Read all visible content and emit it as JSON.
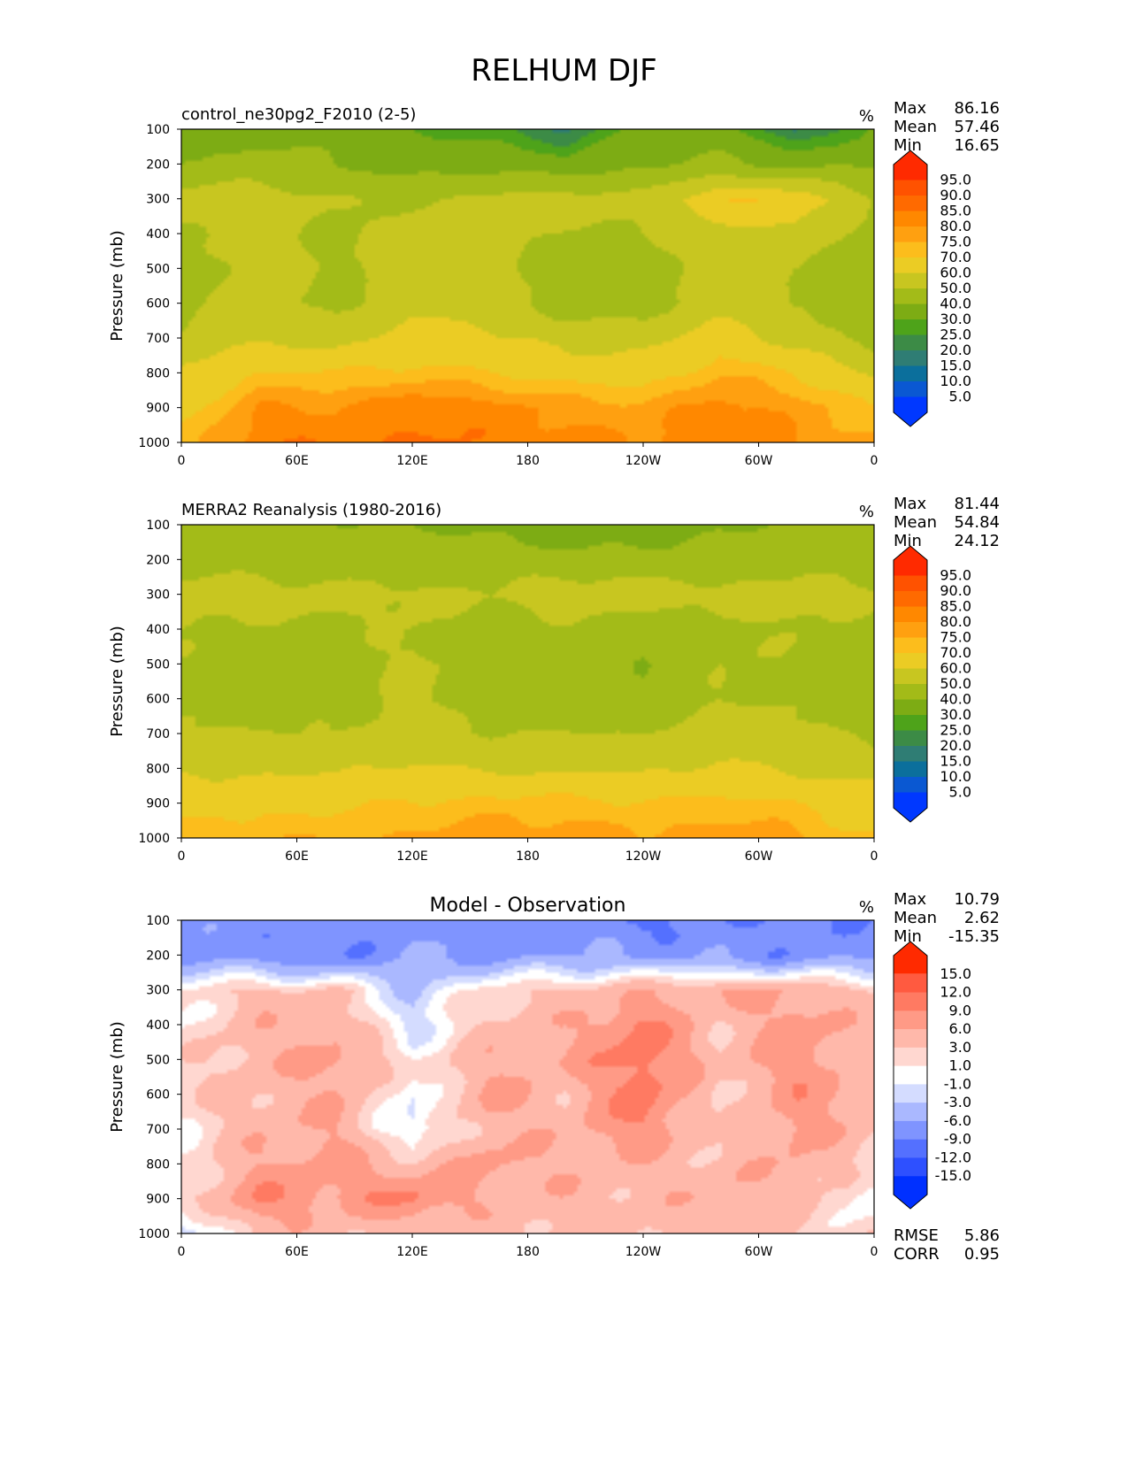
{
  "page": {
    "title": "RELHUM DJF"
  },
  "panel_labels": {
    "ylabel": "Pressure (mb)",
    "units": "%",
    "stat_max": "Max",
    "stat_mean": "Mean",
    "stat_min": "Min",
    "stat_rmse": "RMSE",
    "stat_corr": "CORR"
  },
  "chart_data": [
    {
      "type": "heatmap",
      "title": "control_ne30pg2_F2010 (2-5)",
      "units": "%",
      "ylabel": "Pressure (mb)",
      "x_ticks": [
        "0",
        "60E",
        "120E",
        "180",
        "120W",
        "60W",
        "0"
      ],
      "y_ticks": [
        "100",
        "200",
        "300",
        "400",
        "500",
        "600",
        "700",
        "800",
        "900",
        "1000"
      ],
      "xlim": [
        0,
        360
      ],
      "ylim": [
        1000,
        100
      ],
      "stats": {
        "max": "86.16",
        "mean": "57.46",
        "min": "16.65"
      },
      "colorbar": {
        "labels": [
          "95.0",
          "90.0",
          "85.0",
          "80.0",
          "75.0",
          "70.0",
          "60.0",
          "50.0",
          "40.0",
          "30.0",
          "25.0",
          "20.0",
          "15.0",
          "10.0",
          "5.0"
        ],
        "colors": [
          "#ff2a00",
          "#ff5200",
          "#ff6a00",
          "#ff8800",
          "#ffa010",
          "#fcbd1c",
          "#ebcc24",
          "#c8c620",
          "#a3bb18",
          "#7dac14",
          "#4ea31a",
          "#3c8b46",
          "#2f7d74",
          "#0b6f9c",
          "#0a58d2",
          "#0038ff"
        ]
      },
      "field": {
        "levels": [
          100,
          200,
          300,
          400,
          500,
          600,
          700,
          800,
          900,
          1000
        ],
        "rows": [
          [
            30,
            38,
            36,
            30,
            26,
            20,
            34,
            36,
            18,
            32
          ],
          [
            42,
            44,
            40,
            36,
            38,
            34,
            40,
            42,
            38,
            40
          ],
          [
            55,
            56,
            50,
            48,
            52,
            55,
            52,
            70,
            68,
            50
          ],
          [
            48,
            56,
            46,
            56,
            52,
            48,
            50,
            56,
            58,
            45
          ],
          [
            45,
            55,
            48,
            56,
            54,
            46,
            42,
            56,
            50,
            42
          ],
          [
            46,
            55,
            46,
            56,
            56,
            44,
            44,
            56,
            48,
            42
          ],
          [
            52,
            58,
            56,
            66,
            62,
            56,
            56,
            66,
            56,
            46
          ],
          [
            62,
            70,
            70,
            72,
            70,
            66,
            66,
            74,
            70,
            58
          ],
          [
            66,
            80,
            80,
            84,
            82,
            78,
            76,
            82,
            78,
            70
          ],
          [
            72,
            84,
            84,
            86,
            84,
            82,
            80,
            84,
            80,
            76
          ]
        ]
      }
    },
    {
      "type": "heatmap",
      "title": "MERRA2 Reanalysis (1980-2016)",
      "units": "%",
      "ylabel": "Pressure (mb)",
      "x_ticks": [
        "0",
        "60E",
        "120E",
        "180",
        "120W",
        "60W",
        "0"
      ],
      "y_ticks": [
        "100",
        "200",
        "300",
        "400",
        "500",
        "600",
        "700",
        "800",
        "900",
        "1000"
      ],
      "xlim": [
        0,
        360
      ],
      "ylim": [
        1000,
        100
      ],
      "stats": {
        "max": "81.44",
        "mean": "54.84",
        "min": "24.12"
      },
      "colorbar": {
        "labels": [
          "95.0",
          "90.0",
          "85.0",
          "80.0",
          "75.0",
          "70.0",
          "60.0",
          "50.0",
          "40.0",
          "30.0",
          "25.0",
          "20.0",
          "15.0",
          "10.0",
          "5.0"
        ],
        "colors": [
          "#ff2a00",
          "#ff5200",
          "#ff6a00",
          "#ff8800",
          "#ffa010",
          "#fcbd1c",
          "#ebcc24",
          "#c8c620",
          "#a3bb18",
          "#7dac14",
          "#4ea31a",
          "#3c8b46",
          "#2f7d74",
          "#0b6f9c",
          "#0a58d2",
          "#0038ff"
        ]
      },
      "field": {
        "levels": [
          100,
          200,
          300,
          400,
          500,
          600,
          700,
          800,
          900,
          1000
        ],
        "rows": [
          [
            42,
            42,
            40,
            40,
            38,
            32,
            34,
            40,
            40,
            42
          ],
          [
            46,
            46,
            46,
            46,
            46,
            44,
            44,
            46,
            46,
            46
          ],
          [
            55,
            54,
            52,
            52,
            50,
            56,
            56,
            52,
            54,
            52
          ],
          [
            50,
            48,
            48,
            50,
            46,
            48,
            42,
            48,
            50,
            46
          ],
          [
            48,
            46,
            46,
            52,
            46,
            46,
            40,
            50,
            48,
            44
          ],
          [
            48,
            46,
            46,
            52,
            46,
            46,
            44,
            50,
            48,
            46
          ],
          [
            52,
            50,
            50,
            56,
            50,
            50,
            50,
            56,
            52,
            48
          ],
          [
            58,
            58,
            58,
            62,
            58,
            58,
            58,
            62,
            58,
            56
          ],
          [
            66,
            68,
            68,
            70,
            72,
            72,
            70,
            72,
            70,
            64
          ],
          [
            72,
            74,
            74,
            76,
            78,
            78,
            76,
            78,
            76,
            70
          ]
        ]
      }
    },
    {
      "type": "heatmap",
      "title": "Model - Observation",
      "units": "%",
      "ylabel": "Pressure (mb)",
      "x_ticks": [
        "0",
        "60E",
        "120E",
        "180",
        "120W",
        "60W",
        "0"
      ],
      "y_ticks": [
        "100",
        "200",
        "300",
        "400",
        "500",
        "600",
        "700",
        "800",
        "900",
        "1000"
      ],
      "xlim": [
        0,
        360
      ],
      "ylim": [
        1000,
        100
      ],
      "stats": {
        "max": "10.79",
        "mean": "2.62",
        "min": "-15.35",
        "rmse": "5.86",
        "corr": "0.95"
      },
      "colorbar": {
        "labels": [
          "15.0",
          "12.0",
          "9.0",
          "6.0",
          "3.0",
          "1.0",
          "-1.0",
          "-3.0",
          "-6.0",
          "-9.0",
          "-12.0",
          "-15.0"
        ],
        "colors": [
          "#ff2a00",
          "#ff5a40",
          "#ff7a62",
          "#ff9a86",
          "#ffb8aa",
          "#ffd7d0",
          "#ffffff",
          "#d4dcff",
          "#aab8ff",
          "#7f94ff",
          "#5470ff",
          "#2e50ff",
          "#0030ff"
        ]
      },
      "field": {
        "levels": [
          100,
          200,
          300,
          400,
          500,
          600,
          700,
          800,
          900,
          1000
        ],
        "rows": [
          [
            -8,
            -7,
            -8,
            -7,
            -8,
            -7,
            -10,
            -8,
            -9,
            -8
          ],
          [
            -6,
            -8,
            -9,
            -6,
            -7,
            -6,
            -6,
            -7,
            -8,
            -6
          ],
          [
            1,
            4,
            3,
            -3,
            2,
            4,
            5,
            6,
            6,
            3
          ],
          [
            1,
            5,
            5,
            -2,
            4,
            5,
            10,
            3,
            8,
            4
          ],
          [
            2,
            5,
            7,
            1,
            5,
            6,
            11,
            4,
            8,
            4
          ],
          [
            2,
            4,
            6,
            -1,
            7,
            4,
            11,
            2,
            8,
            5
          ],
          [
            1,
            5,
            6,
            -2,
            5,
            5,
            9,
            2,
            7,
            4
          ],
          [
            1,
            6,
            7,
            4,
            7,
            5,
            5,
            4,
            6,
            2
          ],
          [
            2,
            9,
            7,
            10,
            5,
            5,
            4,
            6,
            5,
            -1
          ],
          [
            -3,
            5,
            4,
            4,
            4,
            4,
            4,
            4,
            3,
            2
          ]
        ]
      }
    }
  ]
}
